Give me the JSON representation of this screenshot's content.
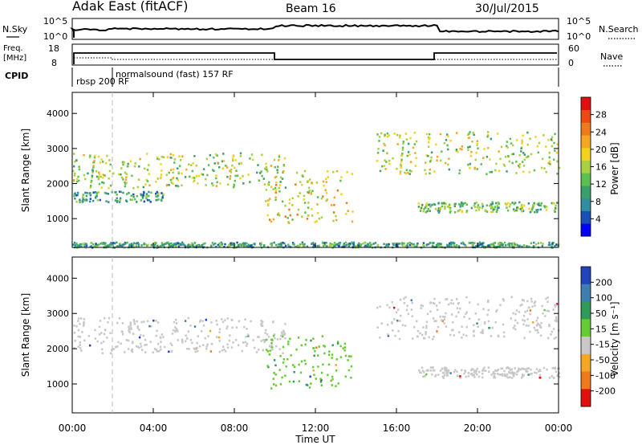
{
  "header": {
    "station": "Adak East (fitACF)",
    "beam": "Beam 16",
    "date": "30/Jul/2015"
  },
  "noise_panel": {
    "left_label": "N.Sky",
    "left_ticks": [
      "10^5",
      "10^0"
    ],
    "right_ticks": [
      "10^5",
      "10^0"
    ],
    "right_label": "N.Search"
  },
  "freq_panel": {
    "left_label_1": "Freq.",
    "left_label_2": "[MHz]",
    "left_ticks": [
      "18",
      "8"
    ],
    "right_ticks": [
      "60",
      "0"
    ],
    "right_label": "Nave"
  },
  "cpid": {
    "label": "CPID",
    "modes": [
      {
        "name": "rbsp 200 RF",
        "start_hour": 0,
        "end_hour": 1.9
      },
      {
        "name": "normalsound (fast) 157 RF",
        "start_hour": 1.9,
        "end_hour": 24
      }
    ]
  },
  "chart_data": [
    {
      "type": "heatmap",
      "title": "",
      "xlabel": "Time UT",
      "ylabel": "Slant Range [km]",
      "x_ticks": [
        "00:00",
        "04:00",
        "08:00",
        "12:00",
        "16:00",
        "20:00",
        "00:00"
      ],
      "xlim_hours": [
        0,
        24
      ],
      "y_ticks": [
        "1000",
        "2000",
        "3000",
        "4000"
      ],
      "ylim_km": [
        180,
        4600
      ],
      "colorbar": {
        "label": "Power [dB]",
        "ticks": [
          "4",
          "8",
          "12",
          "16",
          "20",
          "24",
          "28"
        ],
        "range": [
          0,
          30
        ],
        "colors": [
          "#0000ff",
          "#1a4fb5",
          "#2f8ea0",
          "#3aa06b",
          "#5cc050",
          "#a8d040",
          "#f2d21e",
          "#f5a623",
          "#f07a1a",
          "#ec4a12",
          "#e01010"
        ]
      },
      "echo_regions": [
        {
          "name": "main scatter band",
          "t_start": 0.0,
          "t_end": 10.5,
          "range_start_km": 1900,
          "range_end_km": 2900,
          "power_db": 14
        },
        {
          "name": "lower band",
          "t_start": 0.0,
          "t_end": 4.5,
          "range_start_km": 1500,
          "range_end_km": 1800,
          "power_db": 10
        },
        {
          "name": "descending arc",
          "t_start": 9.5,
          "t_end": 13.8,
          "range_start_km": 900,
          "range_end_km": 2400,
          "power_db": 18
        },
        {
          "name": "late band high",
          "t_start": 15.0,
          "t_end": 24.0,
          "range_start_km": 2300,
          "range_end_km": 3500,
          "power_db": 16
        },
        {
          "name": "late band low",
          "t_start": 17.0,
          "t_end": 24.0,
          "range_start_km": 1200,
          "range_end_km": 1500,
          "power_db": 12
        },
        {
          "name": "ground scatter near range",
          "t_start": 0.0,
          "t_end": 24.0,
          "range_start_km": 200,
          "range_end_km": 350,
          "power_db": 8
        }
      ]
    },
    {
      "type": "heatmap",
      "title": "",
      "xlabel": "Time UT",
      "ylabel": "Slant Range [km]",
      "x_ticks": [
        "00:00",
        "04:00",
        "08:00",
        "12:00",
        "16:00",
        "20:00",
        "00:00"
      ],
      "xlim_hours": [
        0,
        24
      ],
      "y_ticks": [
        "1000",
        "2000",
        "3000",
        "4000"
      ],
      "ylim_km": [
        180,
        4600
      ],
      "colorbar": {
        "label": "Velocity [m s⁻¹]",
        "ticks": [
          "200",
          "100",
          "50",
          "15",
          "-15",
          "-50",
          "-100",
          "-200"
        ],
        "range": [
          -250,
          250
        ],
        "colors": [
          "#2244bb",
          "#3f7fb0",
          "#2f9a5a",
          "#66cc33",
          "#c8c8c8",
          "#f5a623",
          "#f07a1a",
          "#e01010"
        ]
      },
      "echo_regions": [
        {
          "name": "main scatter band",
          "t_start": 0.0,
          "t_end": 10.5,
          "range_start_km": 1900,
          "range_end_km": 2900,
          "velocity": 0
        },
        {
          "name": "descending arc",
          "t_start": 9.5,
          "t_end": 13.8,
          "range_start_km": 900,
          "range_end_km": 2400,
          "velocity": 40
        },
        {
          "name": "late band high",
          "t_start": 15.0,
          "t_end": 24.0,
          "range_start_km": 2300,
          "range_end_km": 3500,
          "velocity": 0
        },
        {
          "name": "late band low",
          "t_start": 17.0,
          "t_end": 24.0,
          "range_start_km": 1200,
          "range_end_km": 1500,
          "velocity": 0
        }
      ]
    }
  ]
}
